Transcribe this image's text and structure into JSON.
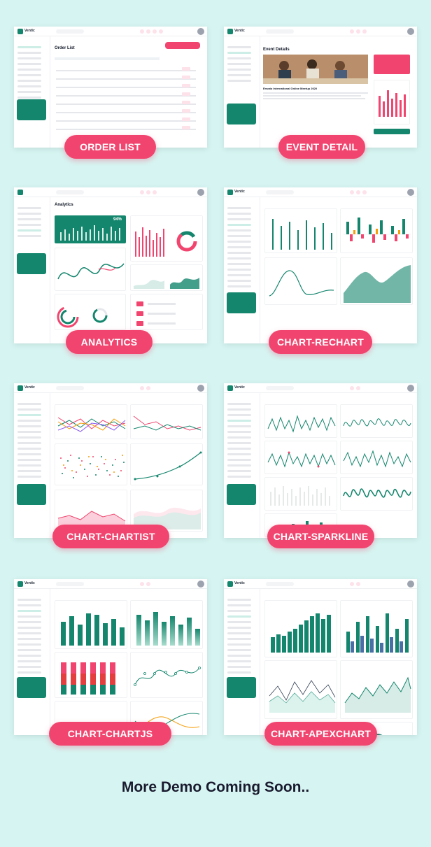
{
  "brand": {
    "accent": "#14866d",
    "pill_color": "#f1456f",
    "background": "#d6f5f2",
    "logo_text": "Ventic"
  },
  "demos": [
    {
      "id": "order-list",
      "label": "ORDER LIST",
      "screen_title": "Order List"
    },
    {
      "id": "event-detail",
      "label": "EVENT DETAIL",
      "screen_title": "Event Details"
    },
    {
      "id": "analytics",
      "label": "ANALYTICS",
      "screen_title": "Analytics"
    },
    {
      "id": "chart-rechart",
      "label": "CHART-RECHART",
      "screen_title": ""
    },
    {
      "id": "chart-chartist",
      "label": "CHART-CHARTIST",
      "screen_title": ""
    },
    {
      "id": "chart-sparkline",
      "label": "CHART-SPARKLINE",
      "screen_title": ""
    },
    {
      "id": "chart-chartjs",
      "label": "CHART-CHARTJS",
      "screen_title": ""
    },
    {
      "id": "chart-apexchart",
      "label": "CHART-APEXCHART",
      "screen_title": ""
    }
  ],
  "event": {
    "headline": "Envato International Online Meetup 2020"
  },
  "analytics": {
    "percent": "94%"
  },
  "footer": {
    "text": "More Demo Coming Soon.."
  }
}
